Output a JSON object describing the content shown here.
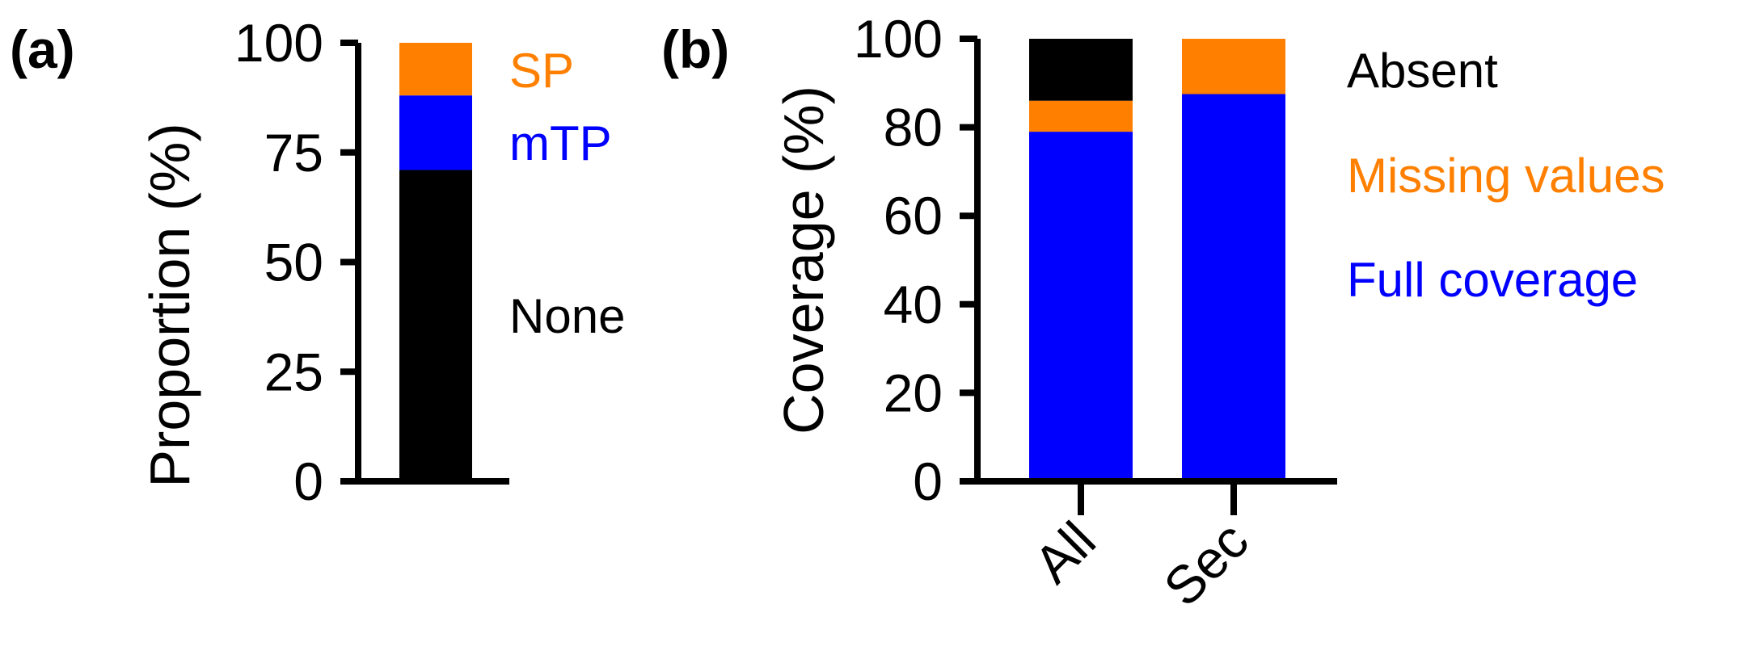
{
  "colors": {
    "black": "#000000",
    "orange": "#FF8000",
    "blue": "#0000FF"
  },
  "chart_data": [
    {
      "type": "bar",
      "stacked": true,
      "panel_label": "(a)",
      "ylabel": "Proportion (%)",
      "ylim": [
        0,
        100
      ],
      "yticks": [
        "0",
        "25",
        "50",
        "75",
        "100"
      ],
      "categories": [
        ""
      ],
      "series": [
        {
          "name": "None",
          "color": "#000000",
          "values": [
            71
          ]
        },
        {
          "name": "mTP",
          "color": "#0000FF",
          "values": [
            17
          ]
        },
        {
          "name": "SP",
          "color": "#FF8000",
          "values": [
            12
          ]
        }
      ],
      "legend": [
        "SP",
        "mTP",
        "None"
      ]
    },
    {
      "type": "bar",
      "stacked": true,
      "panel_label": "(b)",
      "ylabel": "Coverage (%)",
      "ylim": [
        0,
        100
      ],
      "yticks": [
        "0",
        "20",
        "40",
        "60",
        "80",
        "100"
      ],
      "categories": [
        "All",
        "Sec"
      ],
      "series": [
        {
          "name": "Full coverage",
          "color": "#0000FF",
          "values": [
            79,
            87.5
          ]
        },
        {
          "name": "Missing values",
          "color": "#FF8000",
          "values": [
            7,
            12.5
          ]
        },
        {
          "name": "Absent",
          "color": "#000000",
          "values": [
            14,
            0
          ]
        }
      ],
      "legend": [
        "Absent",
        "Missing values",
        "Full coverage"
      ]
    }
  ]
}
